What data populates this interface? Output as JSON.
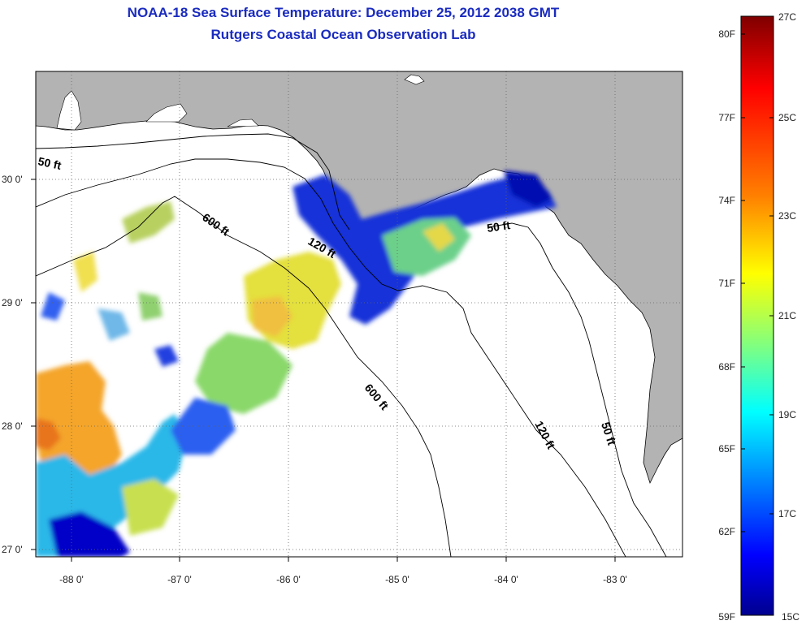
{
  "header": {
    "title": "NOAA-18 Sea Surface Temperature:  December 25, 2012 2038 GMT",
    "subtitle": "Rutgers Coastal Ocean Observation Lab"
  },
  "map": {
    "lat_labels": [
      "30 0'",
      "29 0'",
      "28 0'",
      "27 0'"
    ],
    "lon_labels": [
      "-88 0'",
      "-87 0'",
      "-86 0'",
      "-85 0'",
      "-84 0'",
      "-83 0'"
    ],
    "contours": [
      {
        "label": "50 ft"
      },
      {
        "label": "600 ft"
      },
      {
        "label": "120 ft"
      },
      {
        "label": "50 ft"
      },
      {
        "label": "600 ft"
      },
      {
        "label": "120 ft"
      },
      {
        "label": "50 ft"
      }
    ],
    "colors": {
      "land": "#b3b3b3",
      "ocean": "#ffffff",
      "grid": "#666666"
    }
  },
  "colorbar": {
    "fahrenheit": [
      "80F",
      "77F",
      "74F",
      "71F",
      "68F",
      "65F",
      "62F",
      "59F"
    ],
    "celsius": [
      "27C",
      "25C",
      "23C",
      "21C",
      "19C",
      "17C",
      "15C"
    ],
    "stops": [
      "#7f0000",
      "#ff0000",
      "#ff8000",
      "#ffff00",
      "#80ff80",
      "#00ffff",
      "#0080ff",
      "#0000ff",
      "#00008f"
    ]
  }
}
